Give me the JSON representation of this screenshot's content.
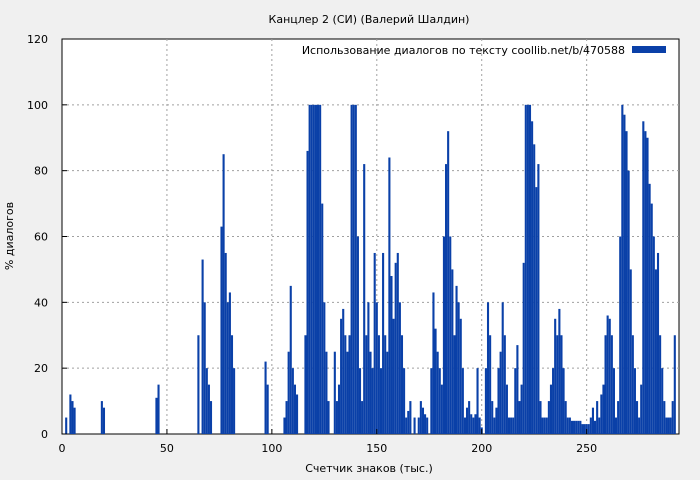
{
  "chart_data": {
    "type": "bar",
    "title": "Канцлер 2 (СИ) (Валерий Шалдин)",
    "xlabel": "Счетчик знаков (тыс.)",
    "ylabel": "% диалогов",
    "xlim": [
      0,
      294
    ],
    "ylim": [
      0,
      120
    ],
    "xticks": [
      0,
      50,
      100,
      150,
      200,
      250
    ],
    "yticks": [
      0,
      20,
      40,
      60,
      80,
      100,
      120
    ],
    "grid": true,
    "legend": {
      "position": "top-right",
      "entries": [
        "Использование диалогов по тексту  coollib.net/b/470588"
      ]
    },
    "series": [
      {
        "name": "Использование диалогов по тексту  coollib.net/b/470588",
        "color": "#0a40a8",
        "x": [
          2,
          4,
          5,
          6,
          19,
          20,
          45,
          46,
          65,
          67,
          68,
          69,
          70,
          71,
          76,
          77,
          78,
          79,
          80,
          81,
          82,
          97,
          98,
          106,
          107,
          108,
          109,
          110,
          111,
          112,
          116,
          117,
          118,
          119,
          120,
          121,
          122,
          123,
          124,
          125,
          126,
          127,
          130,
          131,
          132,
          133,
          134,
          135,
          136,
          137,
          138,
          139,
          140,
          141,
          142,
          143,
          144,
          145,
          146,
          147,
          148,
          149,
          150,
          151,
          152,
          153,
          154,
          155,
          156,
          157,
          158,
          159,
          160,
          161,
          162,
          163,
          164,
          165,
          166,
          168,
          170,
          171,
          172,
          173,
          174,
          176,
          177,
          178,
          179,
          180,
          181,
          182,
          183,
          184,
          185,
          186,
          187,
          188,
          189,
          190,
          191,
          192,
          193,
          194,
          195,
          196,
          197,
          198,
          199,
          200,
          202,
          203,
          204,
          205,
          206,
          207,
          208,
          209,
          210,
          211,
          212,
          213,
          214,
          215,
          216,
          217,
          218,
          219,
          220,
          221,
          222,
          223,
          224,
          225,
          226,
          227,
          228,
          229,
          230,
          231,
          232,
          233,
          234,
          235,
          236,
          237,
          238,
          239,
          240,
          241,
          242,
          243,
          244,
          245,
          246,
          247,
          248,
          249,
          250,
          251,
          252,
          253,
          254,
          255,
          256,
          257,
          258,
          259,
          260,
          261,
          262,
          263,
          264,
          265,
          266,
          267,
          268,
          269,
          270,
          271,
          272,
          273,
          274,
          275,
          276,
          277,
          278,
          279,
          280,
          281,
          282,
          283,
          284,
          285,
          286,
          287,
          288,
          289,
          290,
          291,
          292
        ],
        "values": [
          5,
          12,
          10,
          8,
          10,
          8,
          11,
          15,
          30,
          53,
          40,
          20,
          15,
          10,
          63,
          85,
          55,
          40,
          43,
          30,
          20,
          22,
          15,
          5,
          10,
          25,
          45,
          20,
          15,
          12,
          30,
          86,
          100,
          100,
          100,
          100,
          100,
          100,
          70,
          40,
          25,
          10,
          25,
          10,
          15,
          35,
          38,
          30,
          25,
          30,
          100,
          100,
          100,
          60,
          20,
          10,
          82,
          30,
          40,
          25,
          20,
          55,
          40,
          30,
          20,
          55,
          30,
          25,
          84,
          48,
          35,
          52,
          55,
          40,
          30,
          20,
          5,
          7,
          10,
          5,
          5,
          10,
          8,
          6,
          5,
          20,
          43,
          32,
          25,
          20,
          15,
          60,
          82,
          92,
          60,
          50,
          30,
          45,
          40,
          35,
          20,
          5,
          8,
          10,
          6,
          5,
          6,
          20,
          5,
          2,
          20,
          40,
          30,
          10,
          5,
          8,
          20,
          25,
          40,
          30,
          15,
          5,
          5,
          5,
          20,
          27,
          10,
          15,
          52,
          100,
          100,
          100,
          95,
          88,
          75,
          82,
          10,
          5,
          5,
          5,
          10,
          15,
          20,
          35,
          30,
          38,
          30,
          20,
          10,
          5,
          5,
          4,
          4,
          4,
          4,
          4,
          3,
          3,
          3,
          3,
          5,
          8,
          4,
          10,
          5,
          12,
          15,
          30,
          36,
          35,
          30,
          20,
          5,
          10,
          60,
          100,
          97,
          92,
          80,
          50,
          30,
          20,
          10,
          5,
          15,
          95,
          92,
          90,
          76,
          70,
          60,
          50,
          55,
          30,
          20,
          10,
          5,
          5,
          5,
          10,
          30
        ]
      }
    ]
  }
}
